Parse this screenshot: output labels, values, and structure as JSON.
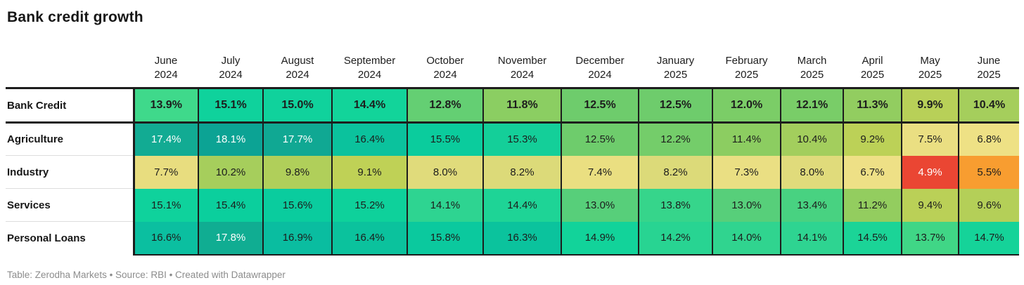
{
  "title": "Bank credit growth",
  "footer": "Table: Zerodha Markets • Source: RBI • Created with Datawrapper",
  "colors": {
    "text": "#1d1d1d",
    "border": "#1d1d1d",
    "label_divider": "#dddddd",
    "footer_text": "#8c8c8c",
    "background": "#ffffff",
    "heat_low": "#ea4633",
    "heat_mid": "#eadf82",
    "heat_high": "#0ca394"
  },
  "chart_data": {
    "type": "heatmap",
    "title": "Bank credit growth",
    "value_format": "percent",
    "columns": [
      "June 2024",
      "July 2024",
      "August 2024",
      "September 2024",
      "October 2024",
      "November 2024",
      "December 2024",
      "January 2025",
      "February 2025",
      "March 2025",
      "April 2025",
      "May 2025",
      "June 2025"
    ],
    "series": [
      {
        "name": "Bank Credit",
        "values": [
          13.9,
          15.1,
          15.0,
          14.4,
          12.8,
          11.8,
          12.5,
          12.5,
          12.0,
          12.1,
          11.3,
          9.9,
          10.4
        ]
      },
      {
        "name": "Agriculture",
        "values": [
          17.4,
          18.1,
          17.7,
          16.4,
          15.5,
          15.3,
          12.5,
          12.2,
          11.4,
          10.4,
          9.2,
          7.5,
          6.8
        ]
      },
      {
        "name": "Industry",
        "values": [
          7.7,
          10.2,
          9.8,
          9.1,
          8.0,
          8.2,
          7.4,
          8.2,
          7.3,
          8.0,
          6.7,
          4.9,
          5.5
        ]
      },
      {
        "name": "Services",
        "values": [
          15.1,
          15.4,
          15.6,
          15.2,
          14.1,
          14.4,
          13.0,
          13.8,
          13.0,
          13.4,
          11.2,
          9.4,
          9.6
        ]
      },
      {
        "name": "Personal Loans",
        "values": [
          16.6,
          17.8,
          16.9,
          16.4,
          15.8,
          16.3,
          14.9,
          14.2,
          14.0,
          14.1,
          14.5,
          13.7,
          14.7
        ]
      }
    ],
    "legend": "none",
    "notes": "First row (Bank Credit) shown emphasized in bold; cells colored on a red-orange-yellow-green-teal scale from low to high"
  },
  "grid": {
    "column_headers": [
      {
        "month": "June",
        "year": "2024"
      },
      {
        "month": "July",
        "year": "2024"
      },
      {
        "month": "August",
        "year": "2024"
      },
      {
        "month": "September",
        "year": "2024"
      },
      {
        "month": "October",
        "year": "2024"
      },
      {
        "month": "November",
        "year": "2024"
      },
      {
        "month": "December",
        "year": "2024"
      },
      {
        "month": "January",
        "year": "2025"
      },
      {
        "month": "February",
        "year": "2025"
      },
      {
        "month": "March",
        "year": "2025"
      },
      {
        "month": "April",
        "year": "2025"
      },
      {
        "month": "May",
        "year": "2025"
      },
      {
        "month": "June",
        "year": "2025"
      }
    ],
    "rows": [
      {
        "label": "Bank Credit",
        "emphasized": true,
        "cells": [
          {
            "value": "13.9%",
            "bg": "#3fd98b",
            "fg": "#1d1d1d"
          },
          {
            "value": "15.1%",
            "bg": "#0fd29c",
            "fg": "#1d1d1d"
          },
          {
            "value": "15.0%",
            "bg": "#10d29c",
            "fg": "#1d1d1d"
          },
          {
            "value": "14.4%",
            "bg": "#12d49a",
            "fg": "#1d1d1d"
          },
          {
            "value": "12.8%",
            "bg": "#64cf73",
            "fg": "#1d1d1d"
          },
          {
            "value": "11.8%",
            "bg": "#8bce62",
            "fg": "#1d1d1d"
          },
          {
            "value": "12.5%",
            "bg": "#6ecc6c",
            "fg": "#1d1d1d"
          },
          {
            "value": "12.5%",
            "bg": "#6ecc6c",
            "fg": "#1d1d1d"
          },
          {
            "value": "12.0%",
            "bg": "#7bcd67",
            "fg": "#1d1d1d"
          },
          {
            "value": "12.1%",
            "bg": "#79cd68",
            "fg": "#1d1d1d"
          },
          {
            "value": "11.3%",
            "bg": "#92cd60",
            "fg": "#1d1d1d"
          },
          {
            "value": "9.9%",
            "bg": "#b8d058",
            "fg": "#1d1d1d"
          },
          {
            "value": "10.4%",
            "bg": "#a5ce5c",
            "fg": "#1d1d1d"
          }
        ]
      },
      {
        "label": "Agriculture",
        "emphasized": false,
        "cells": [
          {
            "value": "17.4%",
            "bg": "#12ab93",
            "fg": "#ffffff"
          },
          {
            "value": "18.1%",
            "bg": "#0ca394",
            "fg": "#ffffff"
          },
          {
            "value": "17.7%",
            "bg": "#10a893",
            "fg": "#ffffff"
          },
          {
            "value": "16.4%",
            "bg": "#0bc29d",
            "fg": "#1d1d1d"
          },
          {
            "value": "15.5%",
            "bg": "#0bcc9d",
            "fg": "#1d1d1d"
          },
          {
            "value": "15.3%",
            "bg": "#14cf99",
            "fg": "#1d1d1d"
          },
          {
            "value": "12.5%",
            "bg": "#6ecc6c",
            "fg": "#1d1d1d"
          },
          {
            "value": "12.2%",
            "bg": "#74cd6a",
            "fg": "#1d1d1d"
          },
          {
            "value": "11.4%",
            "bg": "#8ccd61",
            "fg": "#1d1d1d"
          },
          {
            "value": "10.4%",
            "bg": "#a3ce5d",
            "fg": "#1d1d1d"
          },
          {
            "value": "9.2%",
            "bg": "#bcd157",
            "fg": "#1d1d1d"
          },
          {
            "value": "7.5%",
            "bg": "#eadf82",
            "fg": "#1d1d1d"
          },
          {
            "value": "6.8%",
            "bg": "#eee185",
            "fg": "#1d1d1d"
          }
        ]
      },
      {
        "label": "Industry",
        "emphasized": false,
        "cells": [
          {
            "value": "7.7%",
            "bg": "#e8dd7f",
            "fg": "#1d1d1d"
          },
          {
            "value": "10.2%",
            "bg": "#a6ce5c",
            "fg": "#1d1d1d"
          },
          {
            "value": "9.8%",
            "bg": "#b0cf5a",
            "fg": "#1d1d1d"
          },
          {
            "value": "9.1%",
            "bg": "#bfd156",
            "fg": "#1d1d1d"
          },
          {
            "value": "8.0%",
            "bg": "#e0db7b",
            "fg": "#1d1d1d"
          },
          {
            "value": "8.2%",
            "bg": "#dcda79",
            "fg": "#1d1d1d"
          },
          {
            "value": "7.4%",
            "bg": "#eadf81",
            "fg": "#1d1d1d"
          },
          {
            "value": "8.2%",
            "bg": "#dcda79",
            "fg": "#1d1d1d"
          },
          {
            "value": "7.3%",
            "bg": "#eadf83",
            "fg": "#1d1d1d"
          },
          {
            "value": "8.0%",
            "bg": "#e0db7b",
            "fg": "#1d1d1d"
          },
          {
            "value": "6.7%",
            "bg": "#eee086",
            "fg": "#1d1d1d"
          },
          {
            "value": "4.9%",
            "bg": "#ea4633",
            "fg": "#ffffff"
          },
          {
            "value": "5.5%",
            "bg": "#f89d30",
            "fg": "#1d1d1d"
          }
        ]
      },
      {
        "label": "Services",
        "emphasized": false,
        "cells": [
          {
            "value": "15.1%",
            "bg": "#0fd29c",
            "fg": "#1d1d1d"
          },
          {
            "value": "15.4%",
            "bg": "#0bcf9d",
            "fg": "#1d1d1d"
          },
          {
            "value": "15.6%",
            "bg": "#0acc9e",
            "fg": "#1d1d1d"
          },
          {
            "value": "15.2%",
            "bg": "#0ed19b",
            "fg": "#1d1d1d"
          },
          {
            "value": "14.1%",
            "bg": "#2ed491",
            "fg": "#1d1d1d"
          },
          {
            "value": "14.4%",
            "bg": "#1ed496",
            "fg": "#1d1d1d"
          },
          {
            "value": "13.0%",
            "bg": "#57cf7a",
            "fg": "#1d1d1d"
          },
          {
            "value": "13.8%",
            "bg": "#36d58b",
            "fg": "#1d1d1d"
          },
          {
            "value": "13.0%",
            "bg": "#57cf7a",
            "fg": "#1d1d1d"
          },
          {
            "value": "13.4%",
            "bg": "#48d281",
            "fg": "#1d1d1d"
          },
          {
            "value": "11.2%",
            "bg": "#93cd5f",
            "fg": "#1d1d1d"
          },
          {
            "value": "9.4%",
            "bg": "#bad057",
            "fg": "#1d1d1d"
          },
          {
            "value": "9.6%",
            "bg": "#b4cf58",
            "fg": "#1d1d1d"
          }
        ]
      },
      {
        "label": "Personal Loans",
        "emphasized": false,
        "cells": [
          {
            "value": "16.6%",
            "bg": "#0bbfa0",
            "fg": "#1d1d1d"
          },
          {
            "value": "17.8%",
            "bg": "#10ad92",
            "fg": "#ffffff"
          },
          {
            "value": "16.9%",
            "bg": "#0abda0",
            "fg": "#1d1d1d"
          },
          {
            "value": "16.4%",
            "bg": "#0bc29d",
            "fg": "#1d1d1d"
          },
          {
            "value": "15.8%",
            "bg": "#0bc99e",
            "fg": "#1d1d1d"
          },
          {
            "value": "16.3%",
            "bg": "#0bc39d",
            "fg": "#1d1d1d"
          },
          {
            "value": "14.9%",
            "bg": "#12d39a",
            "fg": "#1d1d1d"
          },
          {
            "value": "14.2%",
            "bg": "#28d492",
            "fg": "#1d1d1d"
          },
          {
            "value": "14.0%",
            "bg": "#30d48f",
            "fg": "#1d1d1d"
          },
          {
            "value": "14.1%",
            "bg": "#2ed491",
            "fg": "#1d1d1d"
          },
          {
            "value": "14.5%",
            "bg": "#1bd497",
            "fg": "#1d1d1d"
          },
          {
            "value": "13.7%",
            "bg": "#40d686",
            "fg": "#1d1d1d"
          },
          {
            "value": "14.7%",
            "bg": "#15d399",
            "fg": "#1d1d1d"
          }
        ]
      }
    ]
  }
}
